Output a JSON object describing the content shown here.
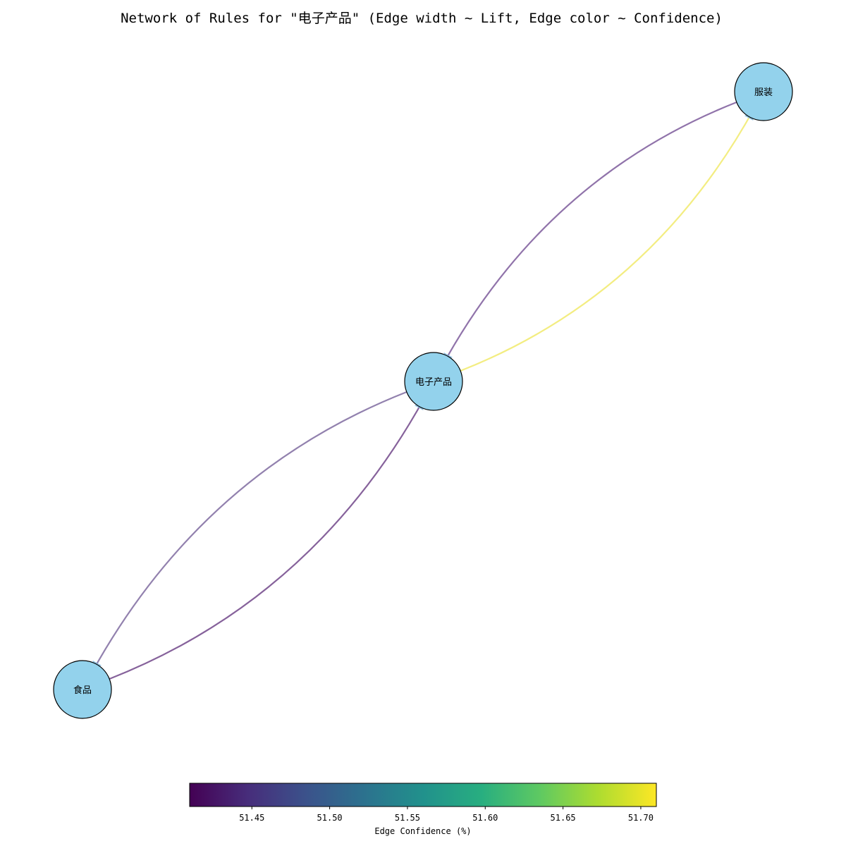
{
  "title": "Network of Rules for \"电子产品\" (Edge width ~ Lift, Edge color ~ Confidence)",
  "nodes": [
    {
      "id": "food",
      "label": "食品"
    },
    {
      "id": "electronics",
      "label": "电子产品"
    },
    {
      "id": "clothing",
      "label": "服装"
    }
  ],
  "edges": [
    {
      "source": "food",
      "target": "electronics",
      "confidence": 51.42,
      "color": "#7f5a96"
    },
    {
      "source": "electronics",
      "target": "food",
      "confidence": 51.46,
      "color": "#8c7aaa"
    },
    {
      "source": "clothing",
      "target": "electronics",
      "confidence": 51.44,
      "color": "#8a6ba5"
    },
    {
      "source": "electronics",
      "target": "clothing",
      "confidence": 51.71,
      "color": "#f2ec7a"
    }
  ],
  "node_color": "#93d2ec",
  "colorbar": {
    "label": "Edge Confidence (%)",
    "colormap": "viridis",
    "range": [
      51.41,
      51.71
    ],
    "ticks": [
      "51.45",
      "51.50",
      "51.55",
      "51.60",
      "51.65",
      "51.70"
    ]
  }
}
